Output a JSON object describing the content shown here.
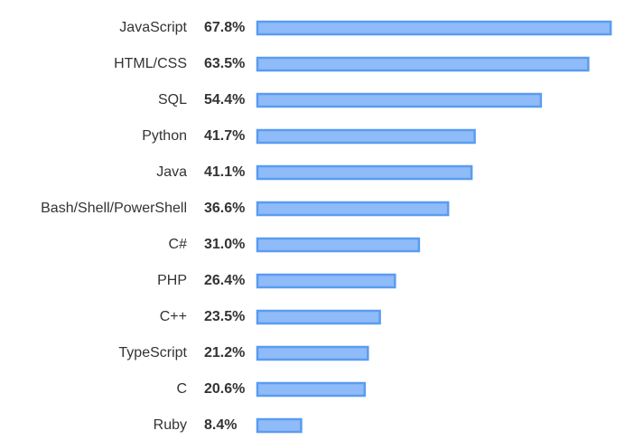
{
  "chart_data": {
    "type": "bar",
    "orientation": "horizontal",
    "categories": [
      "JavaScript",
      "HTML/CSS",
      "SQL",
      "Python",
      "Java",
      "Bash/Shell/PowerShell",
      "C#",
      "PHP",
      "C++",
      "TypeScript",
      "C",
      "Ruby"
    ],
    "values": [
      67.8,
      63.5,
      54.4,
      41.7,
      41.1,
      36.6,
      31.0,
      26.4,
      23.5,
      21.2,
      20.6,
      8.4
    ],
    "value_labels": [
      "67.8%",
      "63.5%",
      "54.4%",
      "41.7%",
      "41.1%",
      "36.6%",
      "31.0%",
      "26.4%",
      "23.5%",
      "21.2%",
      "20.6%",
      "8.4%"
    ],
    "color": "#8fbbf8",
    "edge_color": "#5a9cf0"
  }
}
